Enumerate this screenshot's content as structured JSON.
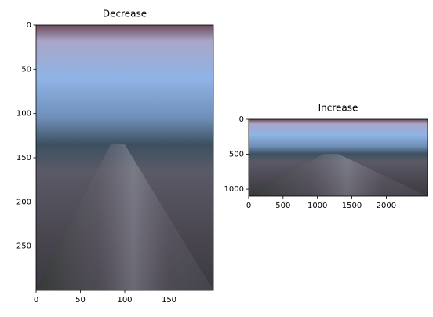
{
  "chart_data": [
    {
      "type": "image",
      "title": "Decrease",
      "xlim": [
        0,
        200
      ],
      "ylim": [
        300,
        0
      ],
      "xticks": [
        0,
        50,
        100,
        150
      ],
      "yticks": [
        0,
        50,
        100,
        150,
        200,
        250
      ]
    },
    {
      "type": "image",
      "title": "Increase",
      "xlim": [
        0,
        2600
      ],
      "ylim": [
        1100,
        0
      ],
      "xticks": [
        0,
        500,
        1000,
        1500,
        2000
      ],
      "yticks": [
        0,
        500,
        1000
      ]
    }
  ]
}
